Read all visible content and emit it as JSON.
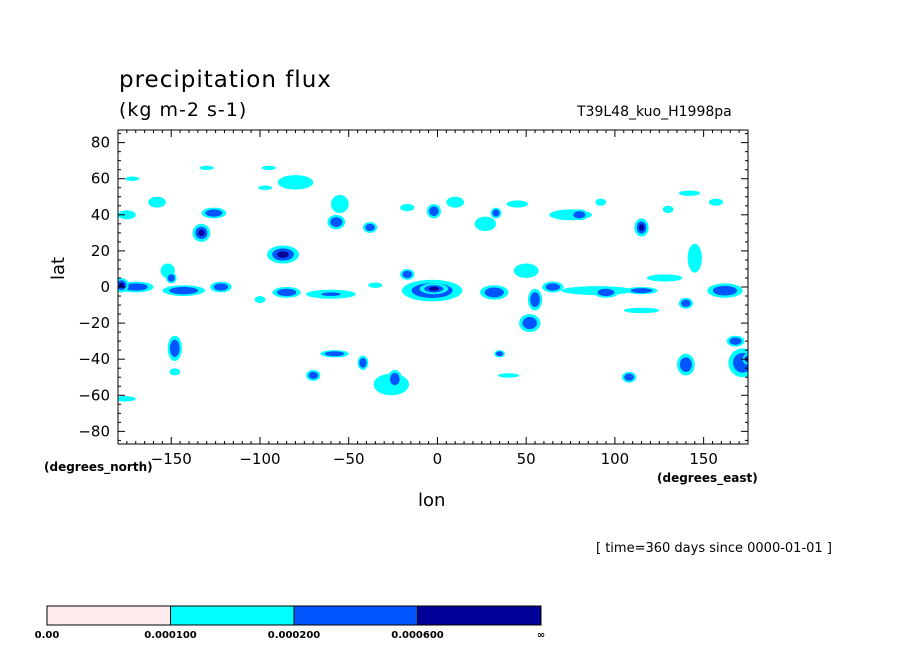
{
  "header": {
    "title": "precipitation flux",
    "units": "(kg m-2 s-1)",
    "experiment": "T39L48_kuo_H1998pa"
  },
  "footer": {
    "time": "[ time=360 days since 0000-01-01 ]"
  },
  "chart_data": {
    "type": "heatmap",
    "title": "precipitation flux",
    "units": "(kg m-2 s-1)",
    "xlabel": "lon",
    "ylabel": "lat",
    "x_units": "(degrees_east)",
    "y_units": "(degrees_north)",
    "xlim": [
      -180,
      175
    ],
    "ylim": [
      -87,
      87
    ],
    "x_ticks": [
      -150,
      -100,
      -50,
      0,
      50,
      100,
      150
    ],
    "x_tick_labels": [
      "−150",
      "−100",
      "−50",
      "0",
      "50",
      "100",
      "150"
    ],
    "y_ticks": [
      -80,
      -60,
      -40,
      -20,
      0,
      20,
      40,
      60,
      80
    ],
    "y_tick_labels": [
      "−80",
      "−60",
      "−40",
      "−20",
      "0",
      "20",
      "40",
      "60",
      "80"
    ],
    "colorbar": {
      "levels": [
        "0.00",
        "0.000100",
        "0.000200",
        "0.000600",
        "∞"
      ],
      "colors": [
        "#fdeaea",
        "#00ffff",
        "#0055ff",
        "#000096"
      ]
    },
    "regions": [
      {
        "lon": -175,
        "lat": 40,
        "rx": 5,
        "ry": 2.5,
        "level": 1
      },
      {
        "lon": -172,
        "lat": 60,
        "rx": 4,
        "ry": 1.2,
        "level": 1
      },
      {
        "lon": -158,
        "lat": 47,
        "rx": 5,
        "ry": 3,
        "level": 1
      },
      {
        "lon": -130,
        "lat": 66,
        "rx": 4,
        "ry": 1.2,
        "level": 1
      },
      {
        "lon": -95,
        "lat": 66,
        "rx": 4,
        "ry": 1.2,
        "level": 1
      },
      {
        "lon": -80,
        "lat": 58,
        "rx": 10,
        "ry": 4,
        "level": 1
      },
      {
        "lon": -97,
        "lat": 55,
        "rx": 4,
        "ry": 1.2,
        "level": 1
      },
      {
        "lon": -126,
        "lat": 41,
        "rx": 7,
        "ry": 3,
        "level": 2
      },
      {
        "lon": -133,
        "lat": 30,
        "rx": 5,
        "ry": 5,
        "level": 3
      },
      {
        "lon": -87,
        "lat": 18,
        "rx": 9,
        "ry": 5,
        "level": 3
      },
      {
        "lon": -55,
        "lat": 46,
        "rx": 5,
        "ry": 5,
        "level": 1
      },
      {
        "lon": -57,
        "lat": 36,
        "rx": 5,
        "ry": 4,
        "level": 2
      },
      {
        "lon": -38,
        "lat": 33,
        "rx": 4,
        "ry": 3,
        "level": 2
      },
      {
        "lon": -17,
        "lat": 44,
        "rx": 4,
        "ry": 2,
        "level": 1
      },
      {
        "lon": -2,
        "lat": 42,
        "rx": 4,
        "ry": 4,
        "level": 2
      },
      {
        "lon": 10,
        "lat": 47,
        "rx": 5,
        "ry": 3,
        "level": 1
      },
      {
        "lon": 27,
        "lat": 35,
        "rx": 6,
        "ry": 4,
        "level": 1
      },
      {
        "lon": 33,
        "lat": 41,
        "rx": 3,
        "ry": 3,
        "level": 2
      },
      {
        "lon": 45,
        "lat": 46,
        "rx": 6,
        "ry": 2,
        "level": 1
      },
      {
        "lon": 75,
        "lat": 40,
        "rx": 12,
        "ry": 3,
        "level": 1
      },
      {
        "lon": 80,
        "lat": 40,
        "rx": 5,
        "ry": 3,
        "level": 2
      },
      {
        "lon": 92,
        "lat": 47,
        "rx": 3,
        "ry": 2,
        "level": 1
      },
      {
        "lon": 115,
        "lat": 33,
        "rx": 4,
        "ry": 5,
        "level": 3
      },
      {
        "lon": 130,
        "lat": 43,
        "rx": 3,
        "ry": 2,
        "level": 1
      },
      {
        "lon": 142,
        "lat": 52,
        "rx": 6,
        "ry": 1.5,
        "level": 1
      },
      {
        "lon": 157,
        "lat": 47,
        "rx": 4,
        "ry": 2,
        "level": 1
      },
      {
        "lon": -170,
        "lat": 0,
        "rx": 10,
        "ry": 3,
        "level": 2
      },
      {
        "lon": -178,
        "lat": 1,
        "rx": 4,
        "ry": 4,
        "level": 3
      },
      {
        "lon": -152,
        "lat": 9,
        "rx": 4,
        "ry": 4,
        "level": 1
      },
      {
        "lon": -150,
        "lat": 5,
        "rx": 3,
        "ry": 3,
        "level": 2
      },
      {
        "lon": -143,
        "lat": -2,
        "rx": 12,
        "ry": 3,
        "level": 2
      },
      {
        "lon": -122,
        "lat": 0,
        "rx": 6,
        "ry": 3,
        "level": 2
      },
      {
        "lon": -100,
        "lat": -7,
        "rx": 3,
        "ry": 2,
        "level": 1
      },
      {
        "lon": -85,
        "lat": -3,
        "rx": 8,
        "ry": 3,
        "level": 2
      },
      {
        "lon": -60,
        "lat": -4,
        "rx": 14,
        "ry": 2.5,
        "level": 1
      },
      {
        "lon": -60,
        "lat": -4,
        "rx": 8,
        "ry": 1.5,
        "level": 2
      },
      {
        "lon": -35,
        "lat": 1,
        "rx": 4,
        "ry": 1.5,
        "level": 1
      },
      {
        "lon": -17,
        "lat": 7,
        "rx": 4,
        "ry": 3,
        "level": 2
      },
      {
        "lon": -3,
        "lat": -2,
        "rx": 17,
        "ry": 6,
        "level": 2
      },
      {
        "lon": -2,
        "lat": -1,
        "rx": 8,
        "ry": 3,
        "level": 3
      },
      {
        "lon": 32,
        "lat": -3,
        "rx": 8,
        "ry": 4,
        "level": 2
      },
      {
        "lon": 50,
        "lat": 9,
        "rx": 7,
        "ry": 4,
        "level": 1
      },
      {
        "lon": 55,
        "lat": -7,
        "rx": 4,
        "ry": 6,
        "level": 2
      },
      {
        "lon": 65,
        "lat": 0,
        "rx": 6,
        "ry": 3,
        "level": 2
      },
      {
        "lon": 90,
        "lat": -2,
        "rx": 20,
        "ry": 2.5,
        "level": 1
      },
      {
        "lon": 95,
        "lat": -3,
        "rx": 7,
        "ry": 3,
        "level": 2
      },
      {
        "lon": 115,
        "lat": -2,
        "rx": 9,
        "ry": 2,
        "level": 2
      },
      {
        "lon": 128,
        "lat": 5,
        "rx": 10,
        "ry": 2,
        "level": 1
      },
      {
        "lon": 115,
        "lat": -13,
        "rx": 10,
        "ry": 1.5,
        "level": 1
      },
      {
        "lon": 145,
        "lat": 16,
        "rx": 4,
        "ry": 8,
        "level": 1
      },
      {
        "lon": 140,
        "lat": -9,
        "rx": 4,
        "ry": 3,
        "level": 2
      },
      {
        "lon": 162,
        "lat": -2,
        "rx": 10,
        "ry": 4,
        "level": 2
      },
      {
        "lon": 52,
        "lat": -20,
        "rx": 6,
        "ry": 5,
        "level": 2
      },
      {
        "lon": -148,
        "lat": -34,
        "rx": 4,
        "ry": 7,
        "level": 2
      },
      {
        "lon": -148,
        "lat": -47,
        "rx": 3,
        "ry": 2,
        "level": 1
      },
      {
        "lon": -70,
        "lat": -49,
        "rx": 4,
        "ry": 3,
        "level": 2
      },
      {
        "lon": -58,
        "lat": -37,
        "rx": 8,
        "ry": 2,
        "level": 2
      },
      {
        "lon": -42,
        "lat": -42,
        "rx": 3,
        "ry": 4,
        "level": 2
      },
      {
        "lon": -26,
        "lat": -54,
        "rx": 10,
        "ry": 6,
        "level": 1
      },
      {
        "lon": -24,
        "lat": -51,
        "rx": 4,
        "ry": 5,
        "level": 2
      },
      {
        "lon": 35,
        "lat": -37,
        "rx": 3,
        "ry": 2,
        "level": 2
      },
      {
        "lon": 40,
        "lat": -49,
        "rx": 6,
        "ry": 1.2,
        "level": 1
      },
      {
        "lon": 108,
        "lat": -50,
        "rx": 4,
        "ry": 3,
        "level": 2
      },
      {
        "lon": 140,
        "lat": -43,
        "rx": 5,
        "ry": 6,
        "level": 2
      },
      {
        "lon": 168,
        "lat": -30,
        "rx": 5,
        "ry": 3,
        "level": 2
      },
      {
        "lon": 172,
        "lat": -42,
        "rx": 8,
        "ry": 8,
        "level": 2
      },
      {
        "lon": 175,
        "lat": -40,
        "rx": 3,
        "ry": 3,
        "level": 3
      },
      {
        "lon": -176,
        "lat": -62,
        "rx": 6,
        "ry": 1.5,
        "level": 1
      }
    ]
  }
}
